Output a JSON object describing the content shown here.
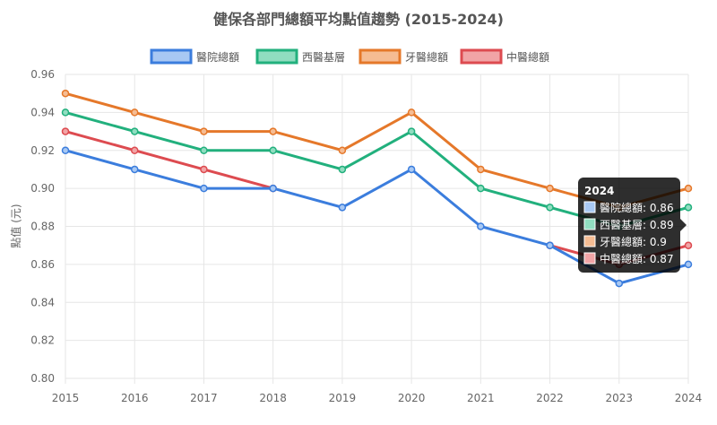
{
  "chart_data": {
    "type": "line",
    "title": "健保各部門總額平均點值趨勢 (2015-2024)",
    "xlabel": "",
    "ylabel": "點值 (元)",
    "ylim": [
      0.8,
      0.96
    ],
    "y_ticks": [
      "0.96",
      "0.94",
      "0.92",
      "0.90",
      "0.88",
      "0.86",
      "0.84",
      "0.82",
      "0.80"
    ],
    "categories": [
      "2015",
      "2016",
      "2017",
      "2018",
      "2019",
      "2020",
      "2021",
      "2022",
      "2023",
      "2024"
    ],
    "grid": true,
    "legend_position": "top",
    "series": [
      {
        "name": "醫院總額",
        "color": "#3b7ddd",
        "fill": "#a8c8f3",
        "values": [
          0.92,
          0.91,
          0.9,
          0.9,
          0.89,
          0.91,
          0.88,
          0.87,
          0.85,
          0.86
        ]
      },
      {
        "name": "西醫基層",
        "color": "#22b07d",
        "fill": "#90ddc0",
        "values": [
          0.94,
          0.93,
          0.92,
          0.92,
          0.91,
          0.93,
          0.9,
          0.89,
          0.88,
          0.89
        ]
      },
      {
        "name": "牙醫總額",
        "color": "#e5782a",
        "fill": "#f5bc93",
        "values": [
          0.95,
          0.94,
          0.93,
          0.93,
          0.92,
          0.94,
          0.91,
          0.9,
          0.89,
          0.9
        ]
      },
      {
        "name": "中醫總額",
        "color": "#dd4b50",
        "fill": "#f1a4a6",
        "values": [
          0.93,
          0.92,
          0.91,
          0.9,
          null,
          null,
          null,
          0.87,
          0.86,
          0.87
        ]
      }
    ],
    "tooltip": {
      "title": "2024",
      "lines": [
        "醫院總額: 0.86",
        "西醫基層: 0.89",
        "牙醫總額: 0.9",
        "中醫總額: 0.87"
      ]
    }
  }
}
